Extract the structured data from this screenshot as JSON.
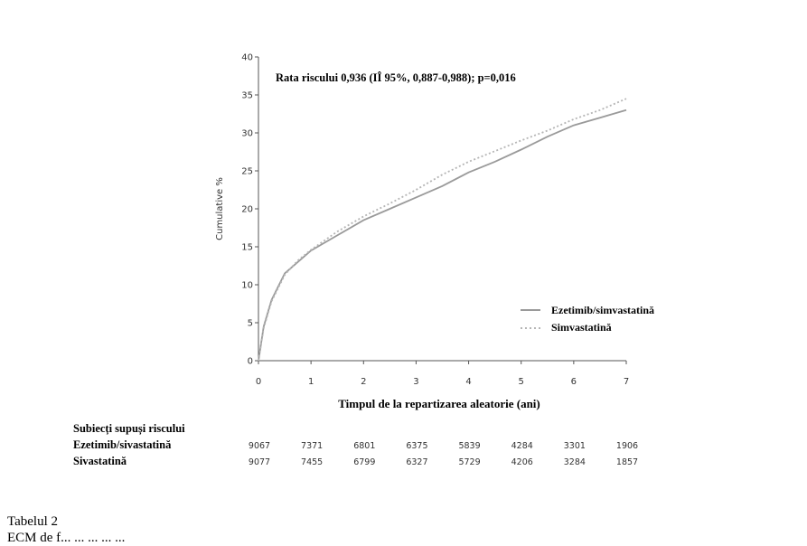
{
  "chart_data": {
    "type": "line",
    "annotation": "Rata riscului 0,936 (IÎ 95%, 0,887-0,988); p=0,016",
    "xlabel": "Timpul de la repartizarea aleatorie (ani)",
    "ylabel": "Cumulative %",
    "xlim": [
      0,
      7
    ],
    "ylim": [
      0,
      40
    ],
    "x_ticks": [
      0,
      1,
      2,
      3,
      4,
      5,
      6,
      7
    ],
    "y_ticks": [
      0,
      5,
      10,
      15,
      20,
      25,
      30,
      35,
      40
    ],
    "legend_position": "bottom-right",
    "series": [
      {
        "name": "Ezetimib/simvastatină",
        "style": "solid",
        "color": "#9a9a9a",
        "points": [
          [
            0,
            0
          ],
          [
            0.1,
            4.5
          ],
          [
            0.25,
            8
          ],
          [
            0.5,
            11.5
          ],
          [
            0.75,
            13
          ],
          [
            1,
            14.5
          ],
          [
            1.5,
            16.5
          ],
          [
            2,
            18.5
          ],
          [
            2.5,
            20
          ],
          [
            3,
            21.5
          ],
          [
            3.5,
            23
          ],
          [
            4,
            24.8
          ],
          [
            4.5,
            26.2
          ],
          [
            5,
            27.8
          ],
          [
            5.5,
            29.5
          ],
          [
            6,
            31
          ],
          [
            6.5,
            32
          ],
          [
            7,
            33
          ]
        ]
      },
      {
        "name": "Simvastatină",
        "style": "dotted",
        "color": "#b5b5b5",
        "points": [
          [
            0,
            0
          ],
          [
            0.1,
            4.3
          ],
          [
            0.25,
            7.8
          ],
          [
            0.5,
            11.3
          ],
          [
            0.75,
            13.2
          ],
          [
            1,
            14.6
          ],
          [
            1.5,
            17
          ],
          [
            2,
            19
          ],
          [
            2.5,
            20.7
          ],
          [
            3,
            22.5
          ],
          [
            3.5,
            24.5
          ],
          [
            4,
            26.2
          ],
          [
            4.5,
            27.6
          ],
          [
            5,
            29
          ],
          [
            5.5,
            30.3
          ],
          [
            6,
            31.8
          ],
          [
            6.5,
            33
          ],
          [
            7,
            34.5
          ]
        ]
      }
    ]
  },
  "risk_table": {
    "title": "Subiecți supuși riscului",
    "rows": [
      {
        "label": "Ezetimib/sivastatină",
        "values": [
          "9067",
          "7371",
          "6801",
          "6375",
          "5839",
          "4284",
          "3301",
          "1906"
        ]
      },
      {
        "label": "Sivastatină",
        "values": [
          "9077",
          "7455",
          "6799",
          "6327",
          "5729",
          "4206",
          "3284",
          "1857"
        ]
      }
    ]
  },
  "caption": {
    "table_title": "Tabelul 2",
    "line": "ECM de f... ... ... ... ..."
  }
}
